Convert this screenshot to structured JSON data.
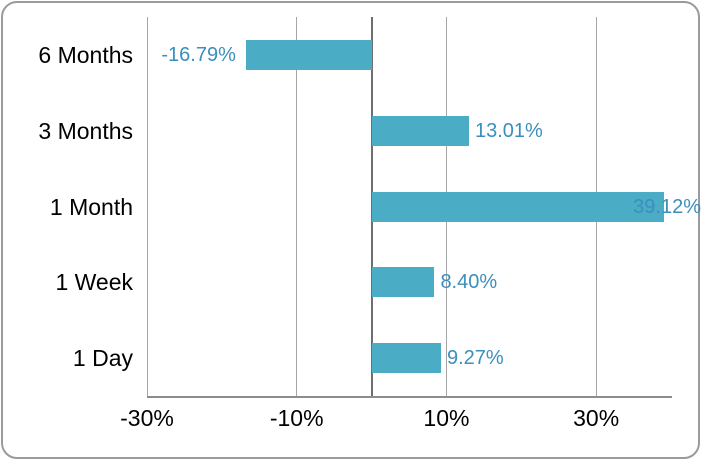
{
  "chart_data": {
    "type": "bar",
    "orientation": "horizontal",
    "title": "",
    "categories": [
      "6 Months",
      "3 Months",
      "1 Month",
      "1 Week",
      "1 Day"
    ],
    "values": [
      -16.79,
      13.01,
      39.12,
      8.4,
      9.27
    ],
    "value_labels": [
      "-16.79%",
      "13.01%",
      "39.12%",
      "8.40%",
      "9.27%"
    ],
    "x_ticks": [
      {
        "value": -30,
        "label": "-30%"
      },
      {
        "value": -10,
        "label": "-10%"
      },
      {
        "value": 10,
        "label": "10%"
      },
      {
        "value": 30,
        "label": "30%"
      }
    ],
    "xlim": [
      -30,
      40
    ],
    "grid": true,
    "legend": "none",
    "category_order": "top-to-bottom",
    "colors": {
      "bar_fill": "#4BACC6",
      "data_label_text": "#3a8fbe",
      "category_text": "#000000",
      "tick_text": "#000000",
      "gridline": "#a6a6a6",
      "zero_axis_line": "#6e6e6e",
      "bottom_axis_line": "#8c8c8c",
      "frame_border": "#9b9b9b",
      "background": "#ffffff"
    }
  }
}
